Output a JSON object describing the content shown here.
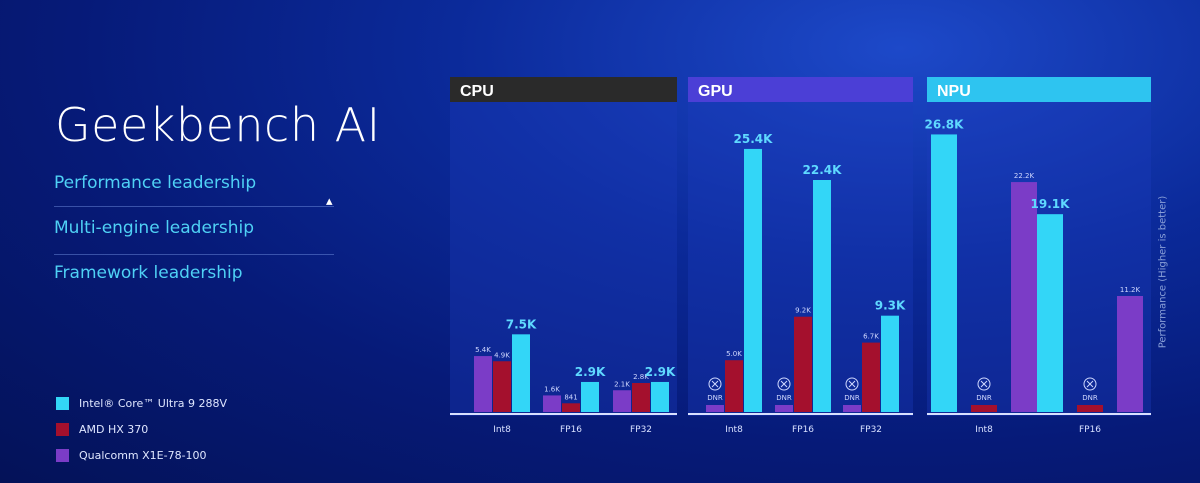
{
  "title": "Geekbench AI",
  "bullets": [
    "Performance leadership",
    "Multi-engine leadership",
    "Framework leadership"
  ],
  "legend": [
    {
      "name": "Intel® Core™ Ultra 9 288V",
      "color": "#33d6f7"
    },
    {
      "name": "AMD HX 370",
      "color": "#a4102d"
    },
    {
      "name": "Qualcomm X1E-78-100",
      "color": "#7b3cc7"
    }
  ],
  "ylabel": "Performance (Higher is better)",
  "chart_data": [
    {
      "type": "bar",
      "title": "CPU",
      "header_color": "#2a2a2a",
      "categories": [
        "Int8",
        "FP16",
        "FP32"
      ],
      "series": [
        {
          "name": "Qualcomm X1E-78-100",
          "values": [
            5.4,
            1.6,
            2.1
          ],
          "labels": [
            "5.4K",
            "1.6K",
            "2.1K"
          ]
        },
        {
          "name": "AMD HX 370",
          "values": [
            4.9,
            0.841,
            2.8
          ],
          "labels": [
            "4.9K",
            "841",
            "2.8K"
          ]
        },
        {
          "name": "Intel® Core™ Ultra 9 288V",
          "values": [
            7.5,
            2.9,
            2.9
          ],
          "labels": [
            "7.5K",
            "2.9K",
            "2.9K"
          ]
        }
      ],
      "ylim": [
        0,
        28
      ]
    },
    {
      "type": "bar",
      "title": "GPU",
      "header_color": "#4b3fd6",
      "categories": [
        "Int8",
        "FP16",
        "FP32"
      ],
      "series": [
        {
          "name": "Qualcomm X1E-78-100",
          "values": [
            null,
            null,
            null
          ],
          "labels": [
            "DNR",
            "DNR",
            "DNR"
          ]
        },
        {
          "name": "AMD HX 370",
          "values": [
            5.0,
            9.2,
            6.7
          ],
          "labels": [
            "5.0K",
            "9.2K",
            "6.7K"
          ]
        },
        {
          "name": "Intel® Core™ Ultra 9 288V",
          "values": [
            25.4,
            22.4,
            9.3
          ],
          "labels": [
            "25.4K",
            "22.4K",
            "9.3K"
          ]
        }
      ],
      "ylim": [
        0,
        28
      ]
    },
    {
      "type": "bar",
      "title": "NPU",
      "header_color": "#2ec4f0",
      "categories": [
        "Int8",
        "FP16"
      ],
      "series": [
        {
          "name": "Intel® Core™ Ultra 9 288V",
          "values": [
            26.8,
            19.1
          ],
          "labels": [
            "26.8K",
            "19.1K"
          ]
        },
        {
          "name": "AMD HX 370",
          "values": [
            null,
            null
          ],
          "labels": [
            "DNR",
            "DNR"
          ]
        },
        {
          "name": "Qualcomm X1E-78-100",
          "values": [
            22.2,
            11.2
          ],
          "labels": [
            "22.2K",
            "11.2K"
          ]
        }
      ],
      "ylim": [
        0,
        28
      ]
    }
  ]
}
